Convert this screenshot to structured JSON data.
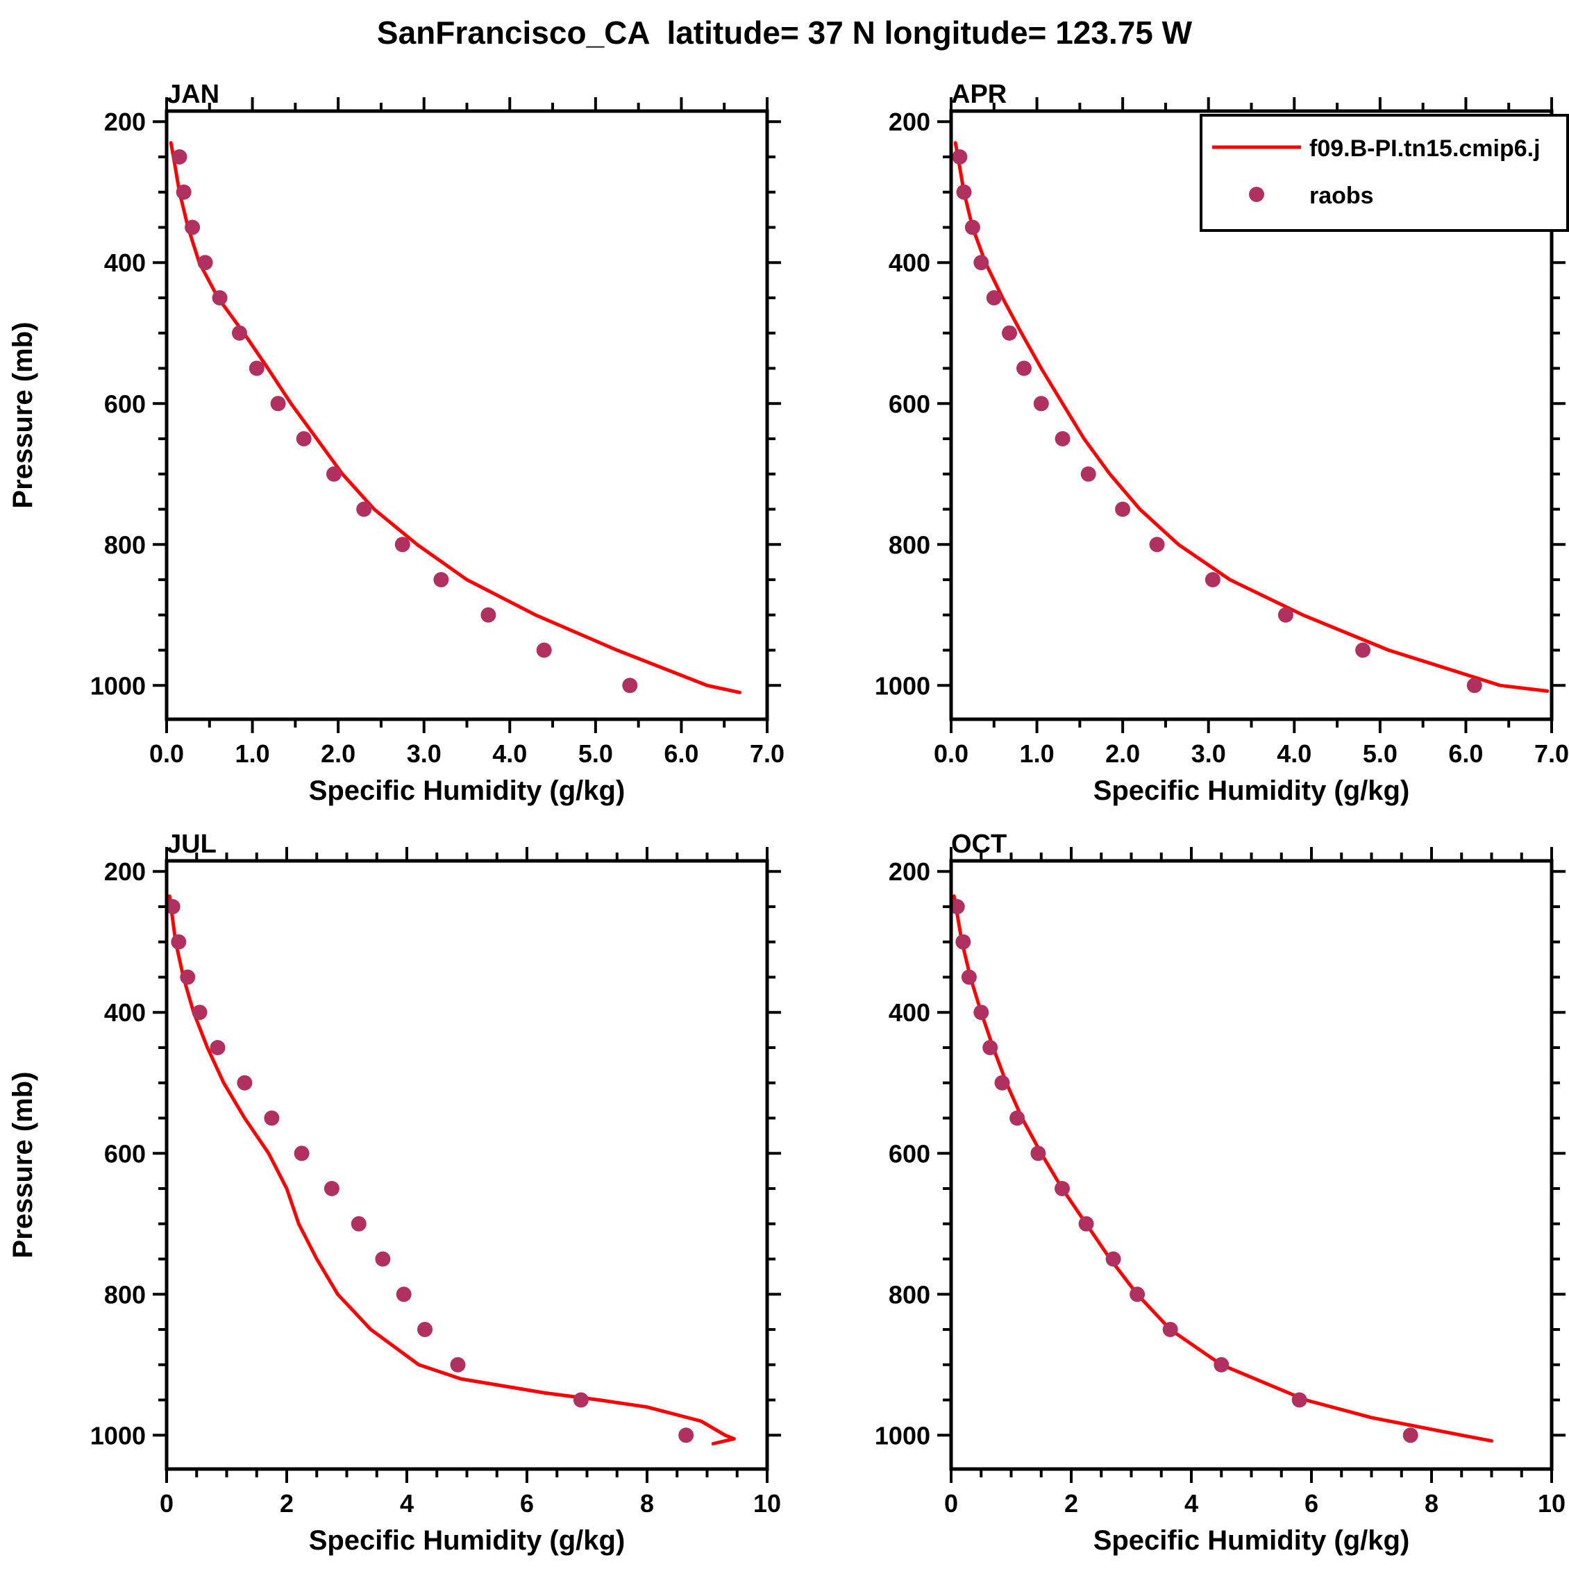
{
  "title": "SanFrancisco_CA  latitude= 37 N longitude= 123.75 W",
  "legend": {
    "line_label": "f09.B-PI.tn15.cmip6.j",
    "dot_label": "raobs"
  },
  "colors": {
    "model_line": "#FF0000",
    "obs_dot": "#B03060",
    "axis": "#000000",
    "background": "#FFFFFF"
  },
  "axes": {
    "ylabel": "Pressure (mb)",
    "xlabel": "Specific Humidity (g/kg)",
    "y_ticks": [
      200,
      400,
      600,
      800,
      1000
    ],
    "y_inverted": true
  },
  "chart_data": [
    {
      "type": "line",
      "month": "JAN",
      "xlabel": "Specific Humidity (g/kg)",
      "x_range": [
        0,
        7
      ],
      "x_ticks": [
        0,
        1,
        2,
        3,
        4,
        5,
        6,
        7
      ],
      "x_tick_labels": [
        "0.0",
        "1.0",
        "2.0",
        "3.0",
        "4.0",
        "5.0",
        "6.0",
        "7.0"
      ],
      "x_minor_step": 0.5,
      "y_ticks": [
        200,
        400,
        600,
        800,
        1000
      ],
      "y_minor_step": 50,
      "y_inverted": true,
      "show_ylabel": true,
      "show_legend": false,
      "point_format": "[pressure_mb, q_g_per_kg]",
      "series": [
        {
          "name": "f09.B-PI.tn15.cmip6.j",
          "type": "line",
          "points": [
            [
              230,
              0.05
            ],
            [
              250,
              0.08
            ],
            [
              300,
              0.15
            ],
            [
              350,
              0.25
            ],
            [
              400,
              0.38
            ],
            [
              450,
              0.6
            ],
            [
              500,
              0.9
            ],
            [
              550,
              1.18
            ],
            [
              600,
              1.45
            ],
            [
              650,
              1.75
            ],
            [
              700,
              2.05
            ],
            [
              750,
              2.42
            ],
            [
              800,
              2.92
            ],
            [
              850,
              3.5
            ],
            [
              900,
              4.3
            ],
            [
              950,
              5.25
            ],
            [
              1000,
              6.3
            ],
            [
              1010,
              6.68
            ]
          ]
        },
        {
          "name": "raobs",
          "type": "scatter",
          "points": [
            [
              250,
              0.15
            ],
            [
              300,
              0.2
            ],
            [
              350,
              0.3
            ],
            [
              400,
              0.45
            ],
            [
              450,
              0.62
            ],
            [
              500,
              0.85
            ],
            [
              550,
              1.05
            ],
            [
              600,
              1.3
            ],
            [
              650,
              1.6
            ],
            [
              700,
              1.95
            ],
            [
              750,
              2.3
            ],
            [
              800,
              2.75
            ],
            [
              850,
              3.2
            ],
            [
              900,
              3.75
            ],
            [
              950,
              4.4
            ],
            [
              1000,
              5.4
            ]
          ]
        }
      ]
    },
    {
      "type": "line",
      "month": "APR",
      "xlabel": "Specific Humidity (g/kg)",
      "x_range": [
        0,
        7
      ],
      "x_ticks": [
        0,
        1,
        2,
        3,
        4,
        5,
        6,
        7
      ],
      "x_tick_labels": [
        "0.0",
        "1.0",
        "2.0",
        "3.0",
        "4.0",
        "5.0",
        "6.0",
        "7.0"
      ],
      "x_minor_step": 0.5,
      "y_ticks": [
        200,
        400,
        600,
        800,
        1000
      ],
      "y_minor_step": 50,
      "y_inverted": true,
      "show_ylabel": false,
      "show_legend": true,
      "point_format": "[pressure_mb, q_g_per_kg]",
      "series": [
        {
          "name": "f09.B-PI.tn15.cmip6.j",
          "type": "line",
          "points": [
            [
              230,
              0.05
            ],
            [
              250,
              0.08
            ],
            [
              300,
              0.15
            ],
            [
              350,
              0.25
            ],
            [
              400,
              0.4
            ],
            [
              450,
              0.6
            ],
            [
              500,
              0.82
            ],
            [
              550,
              1.05
            ],
            [
              600,
              1.3
            ],
            [
              650,
              1.55
            ],
            [
              700,
              1.85
            ],
            [
              750,
              2.2
            ],
            [
              800,
              2.65
            ],
            [
              850,
              3.25
            ],
            [
              900,
              4.1
            ],
            [
              950,
              5.1
            ],
            [
              1000,
              6.4
            ],
            [
              1008,
              6.95
            ]
          ]
        },
        {
          "name": "raobs",
          "type": "scatter",
          "points": [
            [
              250,
              0.1
            ],
            [
              300,
              0.15
            ],
            [
              350,
              0.25
            ],
            [
              400,
              0.35
            ],
            [
              450,
              0.5
            ],
            [
              500,
              0.68
            ],
            [
              550,
              0.85
            ],
            [
              600,
              1.05
            ],
            [
              650,
              1.3
            ],
            [
              700,
              1.6
            ],
            [
              750,
              2.0
            ],
            [
              800,
              2.4
            ],
            [
              850,
              3.05
            ],
            [
              900,
              3.9
            ],
            [
              950,
              4.8
            ],
            [
              1000,
              6.1
            ]
          ]
        }
      ]
    },
    {
      "type": "line",
      "month": "JUL",
      "xlabel": "Specific Humidity (g/kg)",
      "x_range": [
        0,
        10
      ],
      "x_ticks": [
        0,
        2,
        4,
        6,
        8,
        10
      ],
      "x_tick_labels": [
        "0",
        "2",
        "4",
        "6",
        "8",
        "10"
      ],
      "x_minor_step": 0.5,
      "y_ticks": [
        200,
        400,
        600,
        800,
        1000
      ],
      "y_minor_step": 50,
      "y_inverted": true,
      "show_ylabel": true,
      "show_legend": false,
      "point_format": "[pressure_mb, q_g_per_kg]",
      "series": [
        {
          "name": "f09.B-PI.tn15.cmip6.j",
          "type": "line",
          "points": [
            [
              235,
              0.05
            ],
            [
              300,
              0.15
            ],
            [
              350,
              0.28
            ],
            [
              400,
              0.45
            ],
            [
              450,
              0.68
            ],
            [
              500,
              0.95
            ],
            [
              550,
              1.3
            ],
            [
              600,
              1.7
            ],
            [
              650,
              2.0
            ],
            [
              700,
              2.2
            ],
            [
              750,
              2.5
            ],
            [
              800,
              2.85
            ],
            [
              850,
              3.4
            ],
            [
              900,
              4.2
            ],
            [
              920,
              4.9
            ],
            [
              940,
              6.3
            ],
            [
              950,
              7.2
            ],
            [
              960,
              8.0
            ],
            [
              980,
              8.9
            ],
            [
              1000,
              9.3
            ],
            [
              1005,
              9.45
            ],
            [
              1012,
              9.1
            ]
          ]
        },
        {
          "name": "raobs",
          "type": "scatter",
          "points": [
            [
              250,
              0.1
            ],
            [
              300,
              0.2
            ],
            [
              350,
              0.35
            ],
            [
              400,
              0.55
            ],
            [
              450,
              0.85
            ],
            [
              500,
              1.3
            ],
            [
              550,
              1.75
            ],
            [
              600,
              2.25
            ],
            [
              650,
              2.75
            ],
            [
              700,
              3.2
            ],
            [
              750,
              3.6
            ],
            [
              800,
              3.95
            ],
            [
              850,
              4.3
            ],
            [
              900,
              4.85
            ],
            [
              950,
              6.9
            ],
            [
              1000,
              8.65
            ]
          ]
        }
      ]
    },
    {
      "type": "line",
      "month": "OCT",
      "xlabel": "Specific Humidity (g/kg)",
      "x_range": [
        0,
        10
      ],
      "x_ticks": [
        0,
        2,
        4,
        6,
        8,
        10
      ],
      "x_tick_labels": [
        "0",
        "2",
        "4",
        "6",
        "8",
        "10"
      ],
      "x_minor_step": 0.5,
      "y_ticks": [
        200,
        400,
        600,
        800,
        1000
      ],
      "y_minor_step": 50,
      "y_inverted": true,
      "show_ylabel": false,
      "show_legend": false,
      "point_format": "[pressure_mb, q_g_per_kg]",
      "series": [
        {
          "name": "f09.B-PI.tn15.cmip6.j",
          "type": "line",
          "points": [
            [
              235,
              0.05
            ],
            [
              300,
              0.18
            ],
            [
              350,
              0.32
            ],
            [
              400,
              0.5
            ],
            [
              450,
              0.7
            ],
            [
              500,
              0.92
            ],
            [
              550,
              1.18
            ],
            [
              600,
              1.5
            ],
            [
              650,
              1.85
            ],
            [
              700,
              2.25
            ],
            [
              750,
              2.65
            ],
            [
              800,
              3.1
            ],
            [
              850,
              3.65
            ],
            [
              900,
              4.5
            ],
            [
              950,
              5.9
            ],
            [
              975,
              7.0
            ],
            [
              1000,
              8.5
            ],
            [
              1008,
              9.0
            ]
          ]
        },
        {
          "name": "raobs",
          "type": "scatter",
          "points": [
            [
              250,
              0.1
            ],
            [
              300,
              0.2
            ],
            [
              350,
              0.3
            ],
            [
              400,
              0.5
            ],
            [
              450,
              0.65
            ],
            [
              500,
              0.85
            ],
            [
              550,
              1.1
            ],
            [
              600,
              1.45
            ],
            [
              650,
              1.85
            ],
            [
              700,
              2.25
            ],
            [
              750,
              2.7
            ],
            [
              800,
              3.1
            ],
            [
              850,
              3.65
            ],
            [
              900,
              4.5
            ],
            [
              950,
              5.8
            ],
            [
              1000,
              7.65
            ]
          ]
        }
      ]
    }
  ]
}
